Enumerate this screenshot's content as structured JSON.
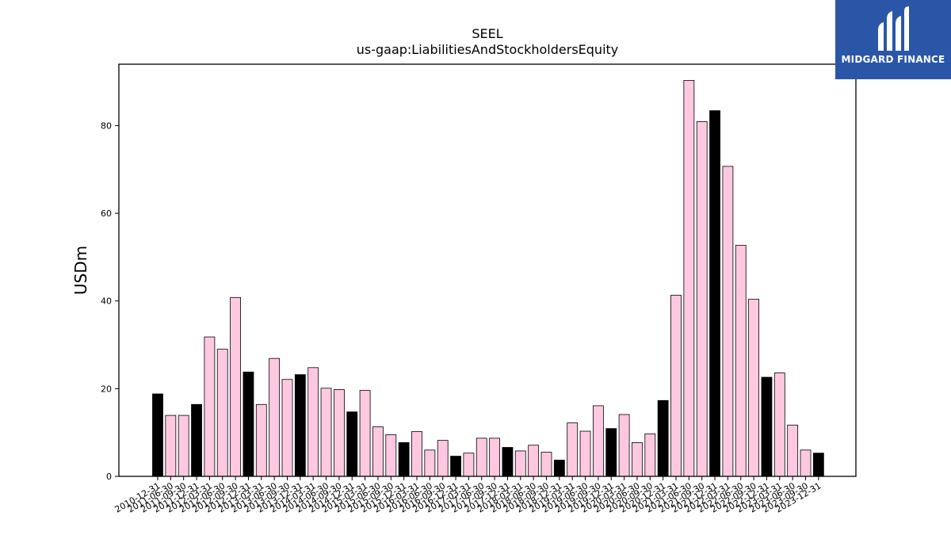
{
  "chart_data": {
    "type": "bar",
    "title": "SEEL",
    "subtitle": "us-gaap:LiabilitiesAndStockholdersEquity",
    "xlabel": "",
    "ylabel": "USDm",
    "ylim": [
      0,
      94
    ],
    "yticks": [
      0,
      20,
      40,
      60,
      80
    ],
    "grid": false,
    "colors": {
      "annual": "#000000",
      "quarterly": "#ffc8e1",
      "edge": "#000000"
    },
    "categories": [
      "2010-12-31",
      "2011-06-30",
      "2011-09-30",
      "2011-12-31",
      "2012-03-31",
      "2012-06-30",
      "2012-09-30",
      "2012-12-31",
      "2013-03-31",
      "2013-06-30",
      "2013-09-30",
      "2013-12-31",
      "2014-03-31",
      "2014-06-30",
      "2014-09-30",
      "2014-12-31",
      "2015-03-31",
      "2015-06-30",
      "2015-09-30",
      "2015-12-31",
      "2016-03-31",
      "2016-06-30",
      "2016-09-30",
      "2016-12-31",
      "2017-03-31",
      "2017-06-30",
      "2017-09-30",
      "2017-12-31",
      "2018-03-31",
      "2018-06-30",
      "2018-09-30",
      "2018-12-31",
      "2019-03-31",
      "2019-06-30",
      "2019-09-30",
      "2019-12-31",
      "2020-03-31",
      "2020-06-30",
      "2020-09-30",
      "2020-12-31",
      "2021-03-31",
      "2021-06-30",
      "2021-09-30",
      "2021-12-31",
      "2022-03-31",
      "2022-06-30",
      "2022-09-30",
      "2022-12-31",
      "2023-03-31",
      "2023-06-30",
      "2023-09-30",
      "2023-12-31"
    ],
    "values": [
      18.8,
      13.9,
      13.9,
      16.4,
      31.8,
      29.0,
      40.8,
      23.8,
      16.4,
      26.9,
      22.1,
      23.2,
      24.8,
      20.1,
      19.8,
      14.7,
      19.6,
      11.3,
      9.5,
      7.7,
      10.2,
      6.0,
      8.2,
      4.6,
      5.3,
      8.7,
      8.7,
      6.6,
      5.8,
      7.1,
      5.5,
      3.7,
      12.2,
      10.3,
      16.1,
      10.9,
      14.1,
      7.7,
      9.7,
      17.3,
      41.3,
      90.3,
      80.9,
      83.4,
      70.7,
      52.7,
      40.4,
      22.6,
      23.6,
      11.7,
      6.0,
      5.3
    ],
    "kinds": [
      "annual",
      "q",
      "q",
      "annual",
      "q",
      "q",
      "q",
      "annual",
      "q",
      "q",
      "q",
      "annual",
      "q",
      "q",
      "q",
      "annual",
      "q",
      "q",
      "q",
      "annual",
      "q",
      "q",
      "q",
      "annual",
      "q",
      "q",
      "q",
      "annual",
      "q",
      "q",
      "q",
      "annual",
      "q",
      "q",
      "q",
      "annual",
      "q",
      "q",
      "q",
      "annual",
      "q",
      "q",
      "q",
      "annual",
      "q",
      "q",
      "q",
      "annual",
      "q",
      "q",
      "q",
      "annual"
    ]
  },
  "logo": {
    "text": "MIDGARD FINANCE"
  }
}
